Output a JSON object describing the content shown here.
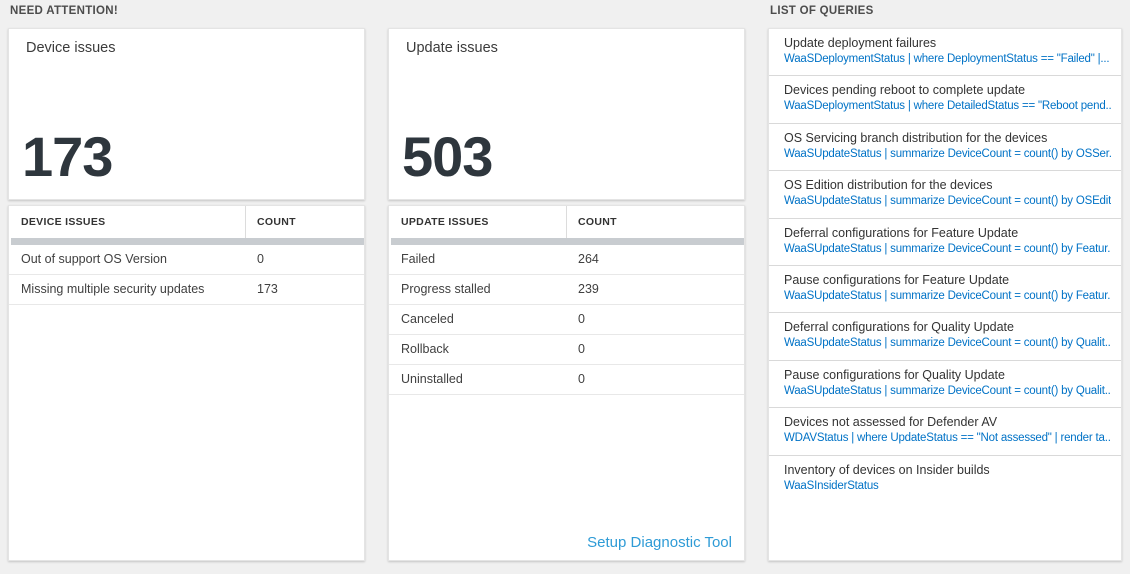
{
  "colors": {
    "query_link_blue": "#0072c6",
    "action_link_blue": "#2e9bd6",
    "big_number_color": "#2e363d",
    "page_background": "#f0f0f0",
    "scrollbar_gray": "#c8ccd0"
  },
  "need_attention": {
    "header": "NEED ATTENTION!"
  },
  "device_tile": {
    "title": "Device issues",
    "count": "173"
  },
  "device_table": {
    "headers": [
      "DEVICE ISSUES",
      "COUNT"
    ],
    "rows": [
      {
        "issue": "Out of support OS Version",
        "count": "0"
      },
      {
        "issue": "Missing multiple security updates",
        "count": "173"
      }
    ]
  },
  "update_tile": {
    "title": "Update issues",
    "count": "503"
  },
  "update_table": {
    "headers": [
      "UPDATE ISSUES",
      "COUNT"
    ],
    "rows": [
      {
        "issue": "Failed",
        "count": "264"
      },
      {
        "issue": "Progress stalled",
        "count": "239"
      },
      {
        "issue": "Canceled",
        "count": "0"
      },
      {
        "issue": "Rollback",
        "count": "0"
      },
      {
        "issue": "Uninstalled",
        "count": "0"
      }
    ],
    "footer_link": "Setup Diagnostic Tool"
  },
  "queries": {
    "header": "LIST OF QUERIES",
    "items": [
      {
        "title": "Update deployment failures",
        "query": "WaaSDeploymentStatus | where DeploymentStatus == \"Failed\" |..."
      },
      {
        "title": "Devices pending reboot to complete update",
        "query": "WaaSDeploymentStatus | where DetailedStatus == \"Reboot pend..."
      },
      {
        "title": "OS Servicing branch distribution for the devices",
        "query": "WaaSUpdateStatus | summarize DeviceCount = count() by OSSer..."
      },
      {
        "title": "OS Edition distribution for the devices",
        "query": "WaaSUpdateStatus | summarize DeviceCount = count() by OSEdit..."
      },
      {
        "title": "Deferral configurations for Feature Update",
        "query": "WaaSUpdateStatus | summarize DeviceCount = count() by Featur..."
      },
      {
        "title": "Pause configurations for Feature Update",
        "query": "WaaSUpdateStatus | summarize DeviceCount = count() by Featur..."
      },
      {
        "title": "Deferral configurations for Quality Update",
        "query": "WaaSUpdateStatus | summarize DeviceCount = count() by Qualit..."
      },
      {
        "title": "Pause configurations for Quality Update",
        "query": "WaaSUpdateStatus | summarize DeviceCount = count() by Qualit..."
      },
      {
        "title": "Devices not assessed for Defender AV",
        "query": "WDAVStatus | where UpdateStatus == \"Not assessed\" | render ta..."
      },
      {
        "title": "Inventory of devices on Insider builds",
        "query": "WaaSInsiderStatus"
      }
    ]
  }
}
